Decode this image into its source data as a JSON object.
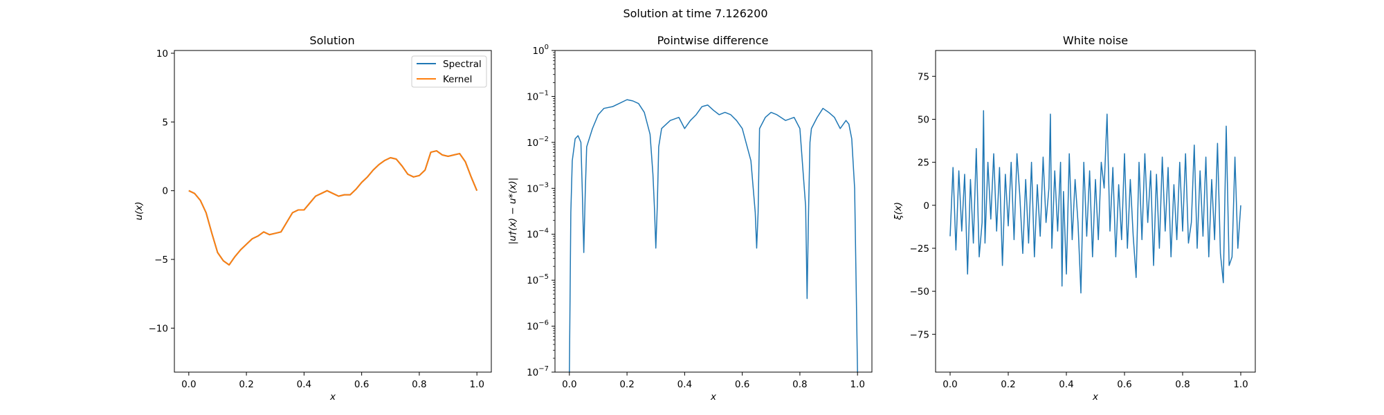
{
  "figure": {
    "suptitle": "Solution at time 7.126200"
  },
  "colors": {
    "spectral": "#1f77b4",
    "kernel": "#ff7f0e",
    "noise": "#1f77b4",
    "difference": "#1f77b4"
  },
  "chart_data": [
    {
      "type": "line",
      "title": "Solution",
      "xlabel": "x",
      "ylabel": "u(x)",
      "xlim": [
        -0.05,
        1.05
      ],
      "ylim": [
        -13.2,
        10.2
      ],
      "xticks": [
        0.0,
        0.2,
        0.4,
        0.6,
        0.8,
        1.0
      ],
      "xtick_labels": [
        "0.0",
        "0.2",
        "0.4",
        "0.6",
        "0.8",
        "1.0"
      ],
      "yticks": [
        10,
        5,
        0,
        -5,
        -10
      ],
      "ytick_labels": [
        "10",
        "5",
        "0",
        "−5",
        "−10"
      ],
      "legend": {
        "position": "upper right",
        "entries": [
          "Spectral",
          "Kernel"
        ]
      },
      "series": [
        {
          "name": "Spectral",
          "x": [
            0.0,
            0.02,
            0.04,
            0.06,
            0.08,
            0.1,
            0.12,
            0.14,
            0.16,
            0.18,
            0.2,
            0.22,
            0.24,
            0.26,
            0.28,
            0.3,
            0.32,
            0.34,
            0.36,
            0.38,
            0.4,
            0.42,
            0.44,
            0.46,
            0.48,
            0.5,
            0.52,
            0.54,
            0.56,
            0.58,
            0.6,
            0.62,
            0.64,
            0.66,
            0.68,
            0.7,
            0.72,
            0.74,
            0.76,
            0.78,
            0.8,
            0.82,
            0.84,
            0.86,
            0.88,
            0.9,
            0.92,
            0.94,
            0.96,
            0.98,
            1.0
          ],
          "y": [
            0.0,
            -0.2,
            -0.7,
            -1.6,
            -3.1,
            -4.5,
            -5.1,
            -5.4,
            -4.8,
            -4.3,
            -3.9,
            -3.5,
            -3.3,
            -3.0,
            -3.2,
            -3.1,
            -3.0,
            -2.3,
            -1.6,
            -1.4,
            -1.4,
            -0.9,
            -0.4,
            -0.2,
            0.0,
            -0.2,
            -0.4,
            -0.3,
            -0.3,
            0.1,
            0.6,
            1.0,
            1.5,
            1.9,
            2.2,
            2.4,
            2.3,
            1.8,
            1.2,
            1.0,
            1.1,
            1.5,
            2.8,
            2.9,
            2.6,
            2.5,
            2.6,
            2.7,
            2.1,
            1.0,
            0.0
          ]
        },
        {
          "name": "Kernel",
          "x": [
            0.0,
            0.02,
            0.04,
            0.06,
            0.08,
            0.1,
            0.12,
            0.14,
            0.16,
            0.18,
            0.2,
            0.22,
            0.24,
            0.26,
            0.28,
            0.3,
            0.32,
            0.34,
            0.36,
            0.38,
            0.4,
            0.42,
            0.44,
            0.46,
            0.48,
            0.5,
            0.52,
            0.54,
            0.56,
            0.58,
            0.6,
            0.62,
            0.64,
            0.66,
            0.68,
            0.7,
            0.72,
            0.74,
            0.76,
            0.78,
            0.8,
            0.82,
            0.84,
            0.86,
            0.88,
            0.9,
            0.92,
            0.94,
            0.96,
            0.98,
            1.0
          ],
          "y": [
            0.0,
            -0.2,
            -0.7,
            -1.6,
            -3.1,
            -4.5,
            -5.1,
            -5.4,
            -4.8,
            -4.3,
            -3.9,
            -3.5,
            -3.3,
            -3.0,
            -3.2,
            -3.1,
            -3.0,
            -2.3,
            -1.6,
            -1.4,
            -1.4,
            -0.9,
            -0.4,
            -0.2,
            0.0,
            -0.2,
            -0.4,
            -0.3,
            -0.3,
            0.1,
            0.6,
            1.0,
            1.5,
            1.9,
            2.2,
            2.4,
            2.3,
            1.8,
            1.2,
            1.0,
            1.1,
            1.5,
            2.8,
            2.9,
            2.6,
            2.5,
            2.6,
            2.7,
            2.1,
            1.0,
            0.0
          ]
        }
      ]
    },
    {
      "type": "line",
      "title": "Pointwise difference",
      "xlabel": "x",
      "ylabel": "|u†(x) − u*(x)|",
      "yscale": "log",
      "xlim": [
        -0.05,
        1.05
      ],
      "ylim": [
        1e-07,
        1
      ],
      "xticks": [
        0.0,
        0.2,
        0.4,
        0.6,
        0.8,
        1.0
      ],
      "xtick_labels": [
        "0.0",
        "0.2",
        "0.4",
        "0.6",
        "0.8",
        "1.0"
      ],
      "ytick_exponents": [
        0,
        -1,
        -2,
        -3,
        -4,
        -5,
        -6,
        -7
      ],
      "ytick_base": "10",
      "series": [
        {
          "x": [
            0.0,
            0.005,
            0.01,
            0.02,
            0.03,
            0.04,
            0.045,
            0.05,
            0.055,
            0.06,
            0.08,
            0.1,
            0.12,
            0.15,
            0.2,
            0.22,
            0.24,
            0.26,
            0.28,
            0.29,
            0.295,
            0.3,
            0.305,
            0.31,
            0.32,
            0.35,
            0.38,
            0.4,
            0.42,
            0.44,
            0.46,
            0.48,
            0.5,
            0.52,
            0.54,
            0.56,
            0.58,
            0.6,
            0.63,
            0.645,
            0.65,
            0.655,
            0.66,
            0.68,
            0.7,
            0.72,
            0.75,
            0.78,
            0.8,
            0.82,
            0.825,
            0.83,
            0.835,
            0.84,
            0.86,
            0.88,
            0.9,
            0.92,
            0.94,
            0.96,
            0.97,
            0.98,
            0.99,
            1.0
          ],
          "y": [
            1e-07,
            0.0003,
            0.004,
            0.012,
            0.014,
            0.01,
            0.0008,
            4e-05,
            0.0008,
            0.008,
            0.02,
            0.04,
            0.055,
            0.06,
            0.085,
            0.08,
            0.07,
            0.045,
            0.015,
            0.002,
            0.0004,
            5e-05,
            0.0004,
            0.008,
            0.02,
            0.03,
            0.035,
            0.02,
            0.03,
            0.04,
            0.06,
            0.065,
            0.05,
            0.04,
            0.045,
            0.04,
            0.03,
            0.02,
            0.004,
            0.0003,
            5e-05,
            0.0003,
            0.02,
            0.035,
            0.045,
            0.04,
            0.03,
            0.035,
            0.02,
            0.0004,
            4e-06,
            0.0003,
            0.01,
            0.02,
            0.035,
            0.055,
            0.045,
            0.035,
            0.02,
            0.03,
            0.025,
            0.012,
            0.001,
            1e-07
          ]
        }
      ]
    },
    {
      "type": "line",
      "title": "White noise",
      "xlabel": "x",
      "ylabel": "ξ(x)",
      "xlim": [
        -0.05,
        1.05
      ],
      "ylim": [
        -97,
        90
      ],
      "xticks": [
        0.0,
        0.2,
        0.4,
        0.6,
        0.8,
        1.0
      ],
      "xtick_labels": [
        "0.0",
        "0.2",
        "0.4",
        "0.6",
        "0.8",
        "1.0"
      ],
      "yticks": [
        75,
        50,
        25,
        0,
        -25,
        -50,
        -75
      ],
      "ytick_labels": [
        "75",
        "50",
        "25",
        "0",
        "−25",
        "−50",
        "−75"
      ],
      "series": [
        {
          "x": [
            0.0,
            0.01,
            0.02,
            0.03,
            0.04,
            0.05,
            0.06,
            0.07,
            0.08,
            0.09,
            0.1,
            0.11,
            0.115,
            0.12,
            0.13,
            0.14,
            0.15,
            0.16,
            0.17,
            0.18,
            0.19,
            0.2,
            0.21,
            0.22,
            0.23,
            0.24,
            0.25,
            0.26,
            0.27,
            0.28,
            0.29,
            0.3,
            0.31,
            0.32,
            0.33,
            0.34,
            0.345,
            0.35,
            0.36,
            0.37,
            0.38,
            0.385,
            0.39,
            0.4,
            0.41,
            0.42,
            0.43,
            0.44,
            0.45,
            0.46,
            0.47,
            0.48,
            0.49,
            0.5,
            0.51,
            0.52,
            0.53,
            0.54,
            0.55,
            0.56,
            0.57,
            0.58,
            0.59,
            0.6,
            0.61,
            0.62,
            0.63,
            0.64,
            0.65,
            0.66,
            0.67,
            0.68,
            0.69,
            0.7,
            0.71,
            0.72,
            0.73,
            0.74,
            0.75,
            0.76,
            0.77,
            0.78,
            0.79,
            0.8,
            0.81,
            0.82,
            0.83,
            0.84,
            0.85,
            0.86,
            0.87,
            0.88,
            0.89,
            0.9,
            0.91,
            0.92,
            0.93,
            0.94,
            0.95,
            0.96,
            0.97,
            0.98,
            0.99,
            1.0
          ],
          "y": [
            -18,
            22,
            -26,
            20,
            -15,
            18,
            -40,
            15,
            -22,
            33,
            -30,
            -10,
            55,
            -22,
            25,
            -8,
            30,
            -15,
            22,
            -35,
            18,
            -12,
            25,
            -20,
            30,
            5,
            -28,
            15,
            -22,
            25,
            -30,
            12,
            -18,
            28,
            -10,
            10,
            53,
            -25,
            20,
            -15,
            25,
            -47,
            8,
            -40,
            30,
            -20,
            15,
            -10,
            -51,
            25,
            -18,
            20,
            -30,
            15,
            -20,
            25,
            10,
            53,
            -15,
            22,
            -30,
            12,
            -20,
            30,
            -25,
            15,
            -18,
            -42,
            25,
            -20,
            30,
            -10,
            20,
            -35,
            18,
            -25,
            28,
            -15,
            22,
            -30,
            12,
            -20,
            25,
            -15,
            30,
            -22,
            -10,
            35,
            -25,
            20,
            -18,
            28,
            -30,
            15,
            -20,
            36,
            -28,
            -45,
            46,
            -35,
            -30,
            28,
            -25,
            0
          ]
        }
      ]
    }
  ]
}
